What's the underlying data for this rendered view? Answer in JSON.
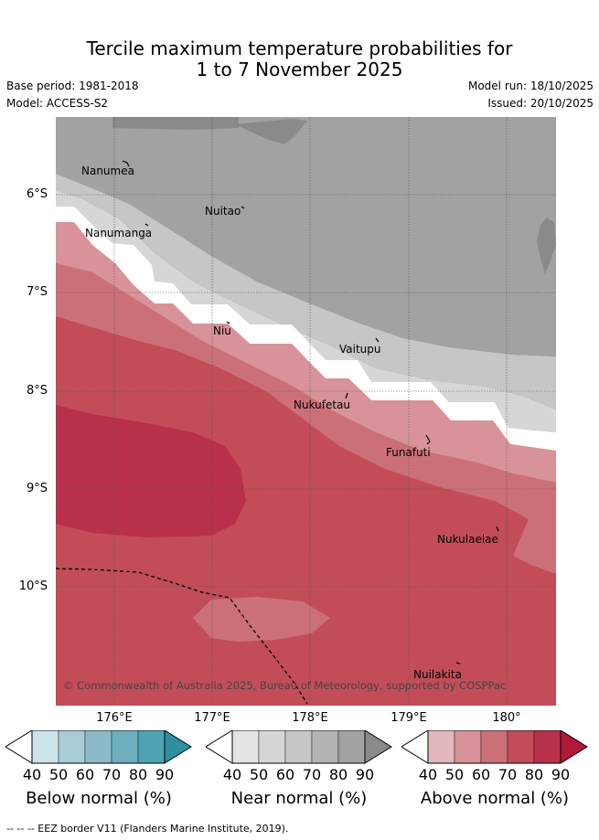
{
  "title": {
    "line1": "Tercile maximum temperature probabilities for",
    "line2": "1 to 7 November 2025"
  },
  "meta": {
    "base_period": "Base period: 1981-2018",
    "model": "Model: ACCESS-S2",
    "model_run": "Model run: 18/10/2025",
    "issued": "Issued: 20/10/2025"
  },
  "axes": {
    "lat_labels": [
      "6°S",
      "7°S",
      "8°S",
      "9°S",
      "10°S"
    ],
    "lon_labels": [
      "176°E",
      "177°E",
      "178°E",
      "179°E",
      "180°"
    ]
  },
  "places": [
    {
      "name": "Nanumea"
    },
    {
      "name": "Nuitao"
    },
    {
      "name": "Nanumanga"
    },
    {
      "name": "Niu"
    },
    {
      "name": "Vaitupu"
    },
    {
      "name": "Nukufetau"
    },
    {
      "name": "Funafuti"
    },
    {
      "name": "Nukulaelae"
    },
    {
      "name": "Nuilakita"
    }
  ],
  "copyright": "© Commonwealth of Australia 2025, Bureau of Meteorology, supported by COSPPac",
  "colorbars": [
    {
      "title": "Below normal (%)",
      "ticks": [
        "40",
        "50",
        "60",
        "70",
        "80",
        "90"
      ],
      "colors": [
        "#cde3ea",
        "#a9cdd6",
        "#8dbac8",
        "#6faebd",
        "#4ea3b3",
        "#2e8fa2"
      ]
    },
    {
      "title": "Near normal (%)",
      "ticks": [
        "40",
        "50",
        "60",
        "70",
        "80",
        "90"
      ],
      "colors": [
        "#e4e4e4",
        "#d6d6d6",
        "#c6c6c6",
        "#b4b4b4",
        "#a2a2a2",
        "#8a8a8a"
      ]
    },
    {
      "title": "Above normal (%)",
      "ticks": [
        "40",
        "50",
        "60",
        "70",
        "80",
        "90"
      ],
      "colors": [
        "#e2b8bf",
        "#d8939a",
        "#cc7078",
        "#c24d58",
        "#b8304a",
        "#b0193a"
      ]
    }
  ],
  "footnote": "--  --  -- EEZ border V11 (Flanders Marine Institute, 2019)."
}
